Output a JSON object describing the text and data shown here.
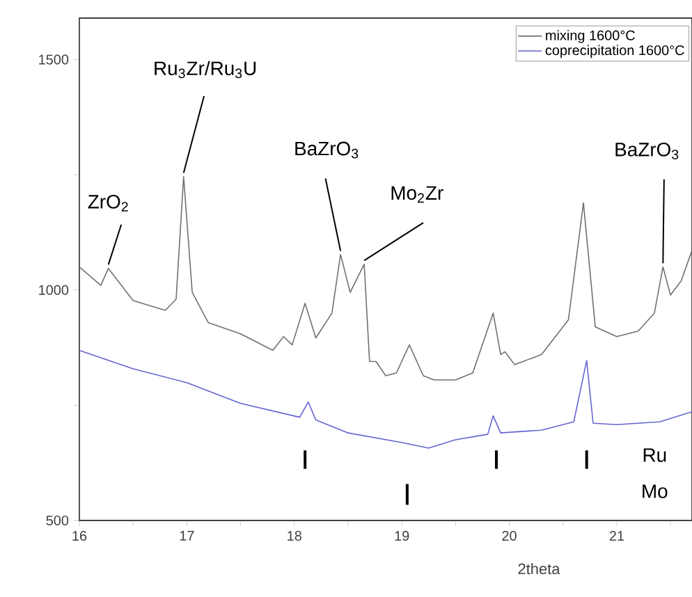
{
  "chart_data": {
    "type": "line",
    "xlabel": "2theta",
    "xlim": [
      16,
      21.7
    ],
    "ylim": [
      500,
      1590
    ],
    "xticks": [
      16,
      {
        "value": 16.5,
        "label": null
      },
      17,
      {
        "value": 17.5,
        "label": null
      },
      18,
      {
        "value": 18.5,
        "label": null
      },
      19,
      {
        "value": 19.5,
        "label": null
      },
      20,
      {
        "value": 20.5,
        "label": null
      },
      21,
      {
        "value": 21.5,
        "label": null
      }
    ],
    "yticks": [
      500,
      {
        "value": 750,
        "label": null
      },
      1000,
      {
        "value": 1250,
        "label": null
      },
      1500
    ],
    "legend": "top right",
    "series": [
      {
        "name": "mixing 1600°C",
        "color": "#707070",
        "x": [
          16.0,
          16.2,
          16.27,
          16.5,
          16.8,
          16.9,
          16.97,
          17.05,
          17.2,
          17.5,
          17.8,
          17.9,
          17.98,
          18.1,
          18.2,
          18.35,
          18.43,
          18.52,
          18.65,
          18.7,
          18.76,
          18.85,
          18.95,
          19.07,
          19.2,
          19.3,
          19.5,
          19.66,
          19.85,
          19.92,
          19.96,
          20.05,
          20.3,
          20.55,
          20.69,
          20.8,
          21.0,
          21.2,
          21.35,
          21.43,
          21.5,
          21.6,
          21.7
        ],
        "values": [
          1050,
          1010,
          1047,
          977,
          956,
          980,
          1246,
          995,
          929,
          905,
          869,
          899,
          881,
          971,
          896,
          950,
          1077,
          995,
          1056,
          845,
          845,
          814,
          820,
          881,
          814,
          805,
          805,
          820,
          950,
          860,
          866,
          838,
          860,
          935,
          1189,
          920,
          899,
          911,
          950,
          1050,
          989,
          1020,
          1086
        ]
      },
      {
        "name": "coprecipitation 1600°C",
        "color": "#6464d2",
        "x": [
          16.0,
          16.5,
          17.0,
          17.5,
          18.05,
          18.13,
          18.2,
          18.5,
          19.0,
          19.25,
          19.5,
          19.8,
          19.85,
          19.92,
          20.3,
          20.6,
          20.72,
          20.78,
          21.0,
          21.4,
          21.7
        ],
        "values": [
          869,
          829,
          799,
          754,
          724,
          757,
          718,
          690,
          669,
          657,
          675,
          687,
          727,
          690,
          696,
          714,
          847,
          711,
          708,
          714,
          736
        ]
      },
      {
        "type": "bar",
        "color": "#000000",
        "x": [
          18.1,
          19.88,
          20.72
        ],
        "base": [
          612,
          612,
          612
        ],
        "values": [
          40,
          40,
          40
        ]
      },
      {
        "type": "bar",
        "color": "#000000",
        "x": [
          19.05
        ],
        "base": [
          534
        ],
        "values": [
          45
        ]
      }
    ],
    "annotations": [
      {
        "text": "ZrO$_{2}$",
        "x": 16.27,
        "y": 1047
      },
      {
        "text": "Ru$_{3}$Zr/Ru$_{3}$U",
        "x": 16.97,
        "y": 1246
      },
      {
        "text": "BaZrO$_{3}$",
        "x": 18.43,
        "y": 1077
      },
      {
        "text": "Mo$_{2}$Zr",
        "x": 18.65,
        "y": 1056
      },
      {
        "text": "BaZrO$_{3}$",
        "x": 21.43,
        "y": 1050
      },
      "Ru",
      "Mo"
    ]
  }
}
